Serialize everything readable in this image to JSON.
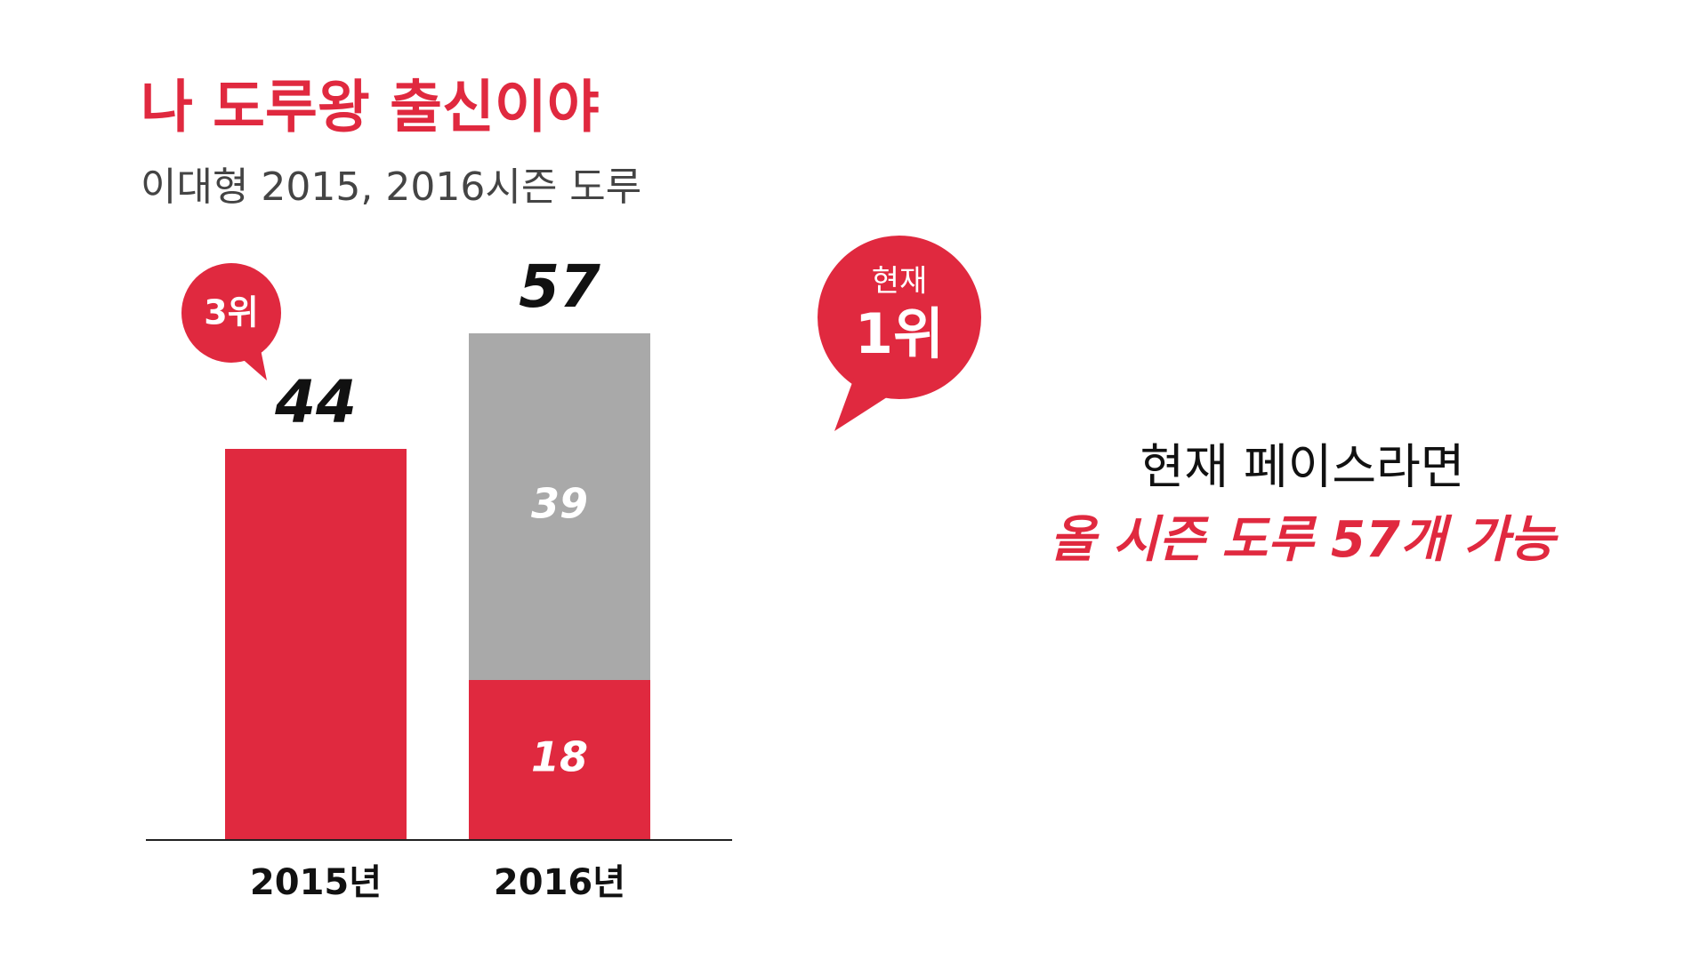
{
  "chart_data": {
    "type": "stacked_bar",
    "title": "나 도루왕 출신이야",
    "subtitle": "이대형 2015, 2016시즌 도루",
    "categories": [
      "2015년",
      "2016년"
    ],
    "series": [
      {
        "color": "#e0293f",
        "values": [
          44,
          18
        ]
      },
      {
        "color": "#a9a9a9",
        "values": [
          null,
          39
        ]
      }
    ],
    "totals": [
      44,
      57
    ],
    "ylim": [
      0,
      60
    ],
    "annotations": {
      "rank_2015": "3위",
      "rank_now_top": "현재",
      "rank_now": "1위"
    },
    "side_text": [
      "현재 페이스라면",
      "올 시즌 도루 57개 가능"
    ]
  }
}
